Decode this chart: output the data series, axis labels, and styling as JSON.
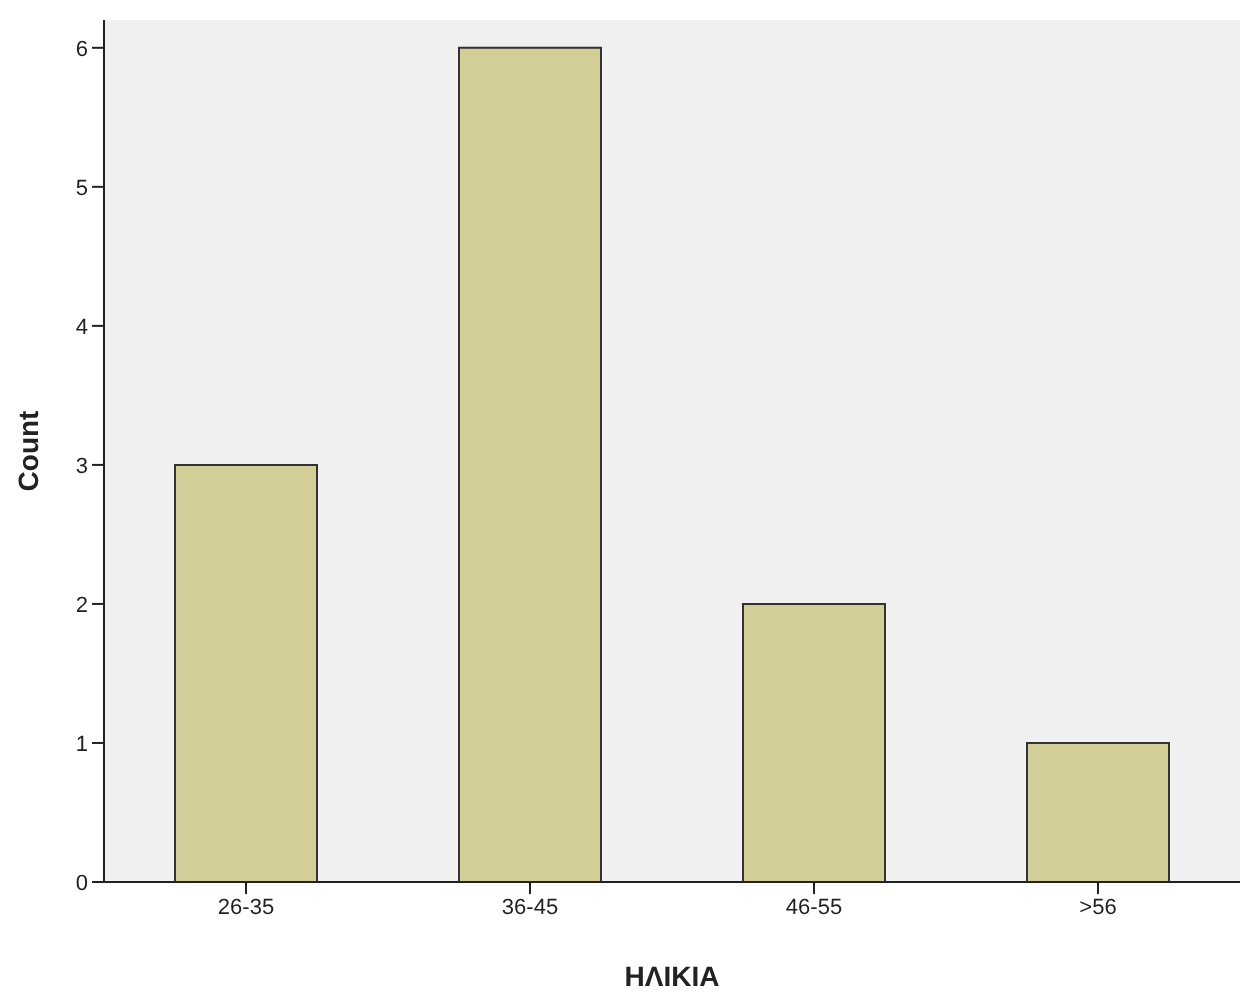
{
  "chart_data": {
    "type": "bar",
    "xlabel": "ΗΛΙΚΙΑ",
    "ylabel": "Count",
    "categories": [
      "26-35",
      "36-45",
      "46-55",
      ">56"
    ],
    "values": [
      3,
      6,
      2,
      1
    ],
    "color": "#d3ce97",
    "ylim": [
      0,
      6.2
    ],
    "yticks": [
      0,
      1,
      2,
      3,
      4,
      5,
      6
    ],
    "grid": false
  }
}
